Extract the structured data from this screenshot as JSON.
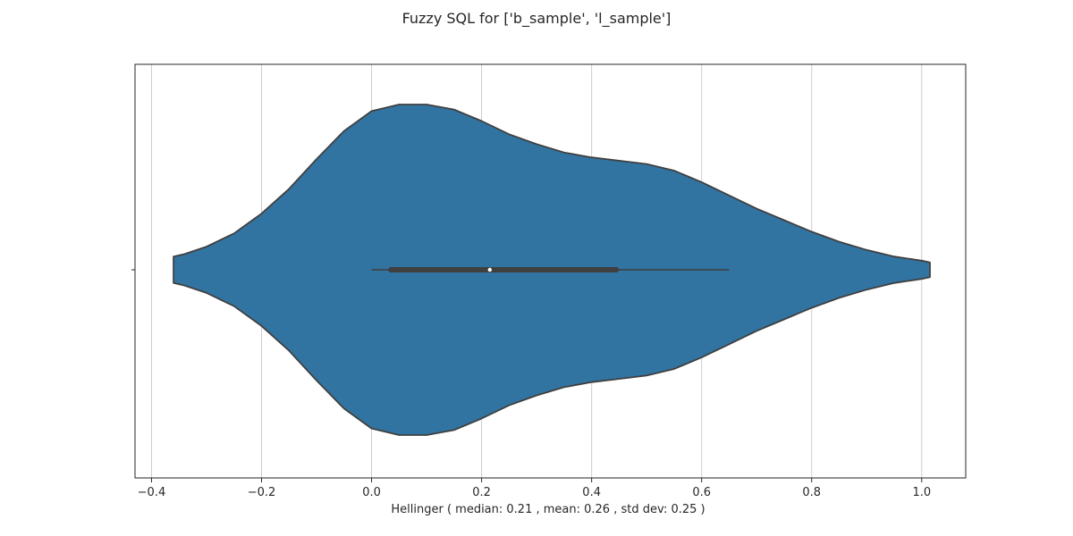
{
  "chart_data": {
    "type": "violin",
    "title": "Fuzzy SQL for ['b_sample', 'l_sample']",
    "xlabel": "Hellinger ( median: 0.21 , mean: 0.26 , std dev: 0.25 )",
    "ylabel": "",
    "xlim": [
      -0.43,
      1.08
    ],
    "xticks": [
      -0.4,
      -0.2,
      0.0,
      0.2,
      0.4,
      0.6,
      0.8,
      1.0
    ],
    "xtick_labels": [
      "−0.4",
      "−0.2",
      "0.0",
      "0.2",
      "0.4",
      "0.6",
      "0.8",
      "1.0"
    ],
    "grid": "vertical",
    "color": "#3274a1",
    "edge_color": "#3f3f3f",
    "density": {
      "x": [
        -0.36,
        -0.34,
        -0.3,
        -0.25,
        -0.2,
        -0.15,
        -0.1,
        -0.05,
        0.0,
        0.05,
        0.1,
        0.15,
        0.2,
        0.25,
        0.3,
        0.35,
        0.4,
        0.45,
        0.5,
        0.55,
        0.6,
        0.65,
        0.7,
        0.75,
        0.8,
        0.85,
        0.9,
        0.95,
        1.0,
        1.015
      ],
      "half_width": [
        0.08,
        0.095,
        0.14,
        0.22,
        0.34,
        0.49,
        0.67,
        0.84,
        0.96,
        1.0,
        1.0,
        0.97,
        0.9,
        0.82,
        0.76,
        0.71,
        0.68,
        0.66,
        0.64,
        0.6,
        0.53,
        0.45,
        0.37,
        0.3,
        0.23,
        0.17,
        0.12,
        0.08,
        0.055,
        0.045
      ]
    },
    "box": {
      "whisker_low": 0.0,
      "q1": 0.035,
      "median": 0.215,
      "q3": 0.445,
      "whisker_high": 0.65
    }
  }
}
